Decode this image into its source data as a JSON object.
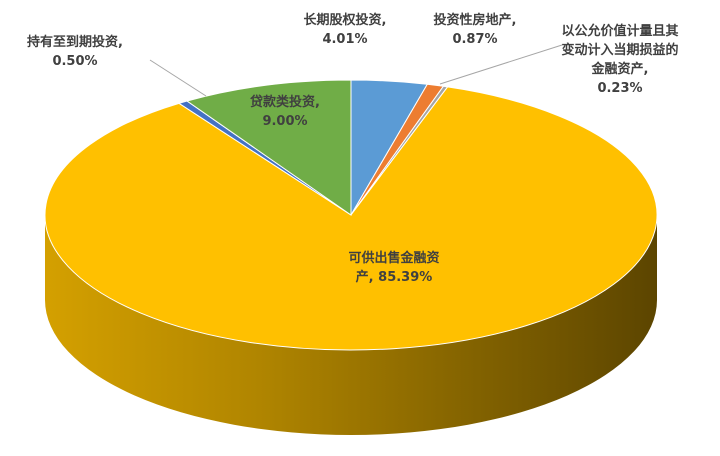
{
  "chart_data": {
    "type": "pie",
    "three_d": true,
    "categories": [
      "长期股权投资,",
      "投资性房地产,",
      "以公允价值计量且其变动计入当期损益的金融资产,",
      "可供出售金融资产,",
      "持有至到期投资,",
      "贷款类投资,"
    ],
    "values": [
      4.01,
      0.87,
      0.23,
      85.39,
      0.5,
      9.0
    ],
    "value_labels": [
      "4.01%",
      "0.87%",
      "0.23%",
      "85.39%",
      "0.50%",
      "9.00%"
    ],
    "colors": [
      "#5b9bd5",
      "#ed7d31",
      "#a5a5a5",
      "#ffc000",
      "#4472c4",
      "#70ad47"
    ]
  }
}
